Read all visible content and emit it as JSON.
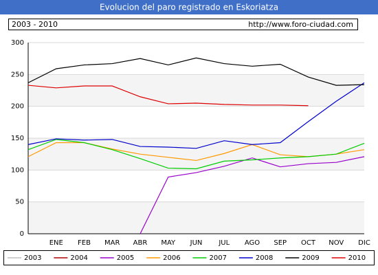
{
  "chart_data": {
    "type": "line",
    "title": "Evolucion del paro registrado en Eskoriatza",
    "subtitle": "2003 - 2010",
    "source": "http://www.foro-ciudad.com",
    "categories": [
      null,
      "ENE",
      "FEB",
      "MAR",
      "ABR",
      "MAY",
      "JUN",
      "JUL",
      "AGO",
      "SEP",
      "OCT",
      "NOV",
      "DIC"
    ],
    "ylim": [
      0,
      300
    ],
    "yticks": [
      0,
      50,
      100,
      150,
      200,
      250,
      300
    ],
    "grid": true,
    "legend": "bottom",
    "series": [
      {
        "name": "2003",
        "color": "#c0c0c0",
        "values": [
          null,
          null,
          null,
          null,
          null,
          null,
          null,
          null,
          null,
          null,
          null,
          null,
          null
        ]
      },
      {
        "name": "2004",
        "color": "#b00000",
        "values": [
          null,
          null,
          null,
          null,
          null,
          null,
          null,
          null,
          null,
          null,
          null,
          null,
          null
        ]
      },
      {
        "name": "2005",
        "color": "#9900cc",
        "values": [
          null,
          null,
          null,
          null,
          0,
          89,
          96,
          106,
          119,
          105,
          110,
          112,
          121
        ]
      },
      {
        "name": "2006",
        "color": "#ff9900",
        "values": [
          121,
          143,
          143,
          133,
          125,
          120,
          115,
          126,
          140,
          124,
          121,
          125,
          132
        ]
      },
      {
        "name": "2007",
        "color": "#00cc00",
        "values": [
          132,
          148,
          143,
          132,
          118,
          103,
          102,
          114,
          116,
          119,
          121,
          125,
          142
        ]
      },
      {
        "name": "2008",
        "color": "#0000cc",
        "values": [
          140,
          149,
          147,
          148,
          137,
          136,
          134,
          146,
          140,
          143,
          176,
          208,
          237
        ]
      },
      {
        "name": "2009",
        "color": "#000000",
        "values": [
          237,
          259,
          265,
          267,
          275,
          265,
          276,
          267,
          263,
          266,
          246,
          233,
          234
        ]
      },
      {
        "name": "2010",
        "color": "#dd0000",
        "values": [
          233,
          229,
          232,
          232,
          215,
          204,
          205,
          203,
          202,
          202,
          201,
          null,
          null
        ]
      }
    ]
  }
}
